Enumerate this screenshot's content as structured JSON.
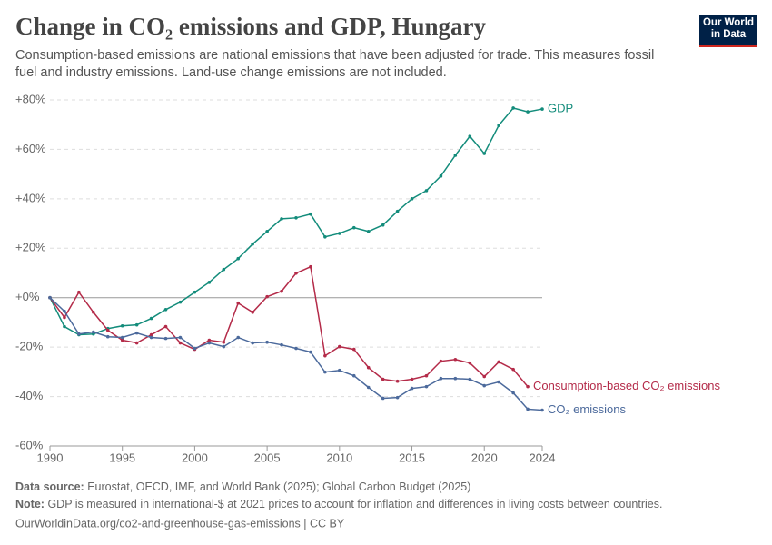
{
  "chart_data": {
    "type": "line",
    "title": "Change in CO₂ emissions and GDP, Hungary",
    "subtitle": "Consumption-based emissions are national emissions that have been adjusted for trade. This measures fossil fuel and industry emissions. Land-use change emissions are not included.",
    "logo": [
      "Our World",
      "in Data"
    ],
    "x": [
      1990,
      1991,
      1992,
      1993,
      1994,
      1995,
      1996,
      1997,
      1998,
      1999,
      2000,
      2001,
      2002,
      2003,
      2004,
      2005,
      2006,
      2007,
      2008,
      2009,
      2010,
      2011,
      2012,
      2013,
      2014,
      2015,
      2016,
      2017,
      2018,
      2019,
      2020,
      2021,
      2022,
      2023,
      2024
    ],
    "series": [
      {
        "name": "GDP",
        "color": "#138c7b",
        "values": [
          0,
          -11.7,
          -15,
          -14.7,
          -12.5,
          -11.4,
          -11,
          -8.4,
          -4.8,
          -1.8,
          2.2,
          6.2,
          11.4,
          15.8,
          21.7,
          26.8,
          31.9,
          32.3,
          33.8,
          24.6,
          26,
          28.3,
          26.8,
          29.4,
          34.9,
          40,
          43.3,
          49.2,
          57.6,
          65.3,
          58.3,
          69.7,
          76.7,
          75.2,
          76.3
        ]
      },
      {
        "name": "Consumption-based CO₂ emissions",
        "color": "#b42b49",
        "values": [
          0,
          -8,
          2.2,
          -5.9,
          -13.2,
          -17.2,
          -18.3,
          -15,
          -11.7,
          -18.3,
          -20.9,
          -17.2,
          -18,
          -2.2,
          -5.9,
          0.4,
          2.6,
          9.9,
          12.5,
          -23.5,
          -19.8,
          -20.9,
          -28.3,
          -33,
          -33.8,
          -33,
          -31.6,
          -25.7,
          -25,
          -26.4,
          -31.9,
          -26,
          -29,
          -36,
          null
        ]
      },
      {
        "name": "CO₂ emissions",
        "color": "#4c6a9c",
        "values": [
          0,
          -5.5,
          -14.7,
          -13.9,
          -15.8,
          -16.1,
          -14.3,
          -16.1,
          -16.5,
          -16.1,
          -20.5,
          -18.3,
          -19.8,
          -16.1,
          -18.3,
          -18,
          -19.1,
          -20.5,
          -22,
          -30.1,
          -29.4,
          -31.6,
          -36.3,
          -40.7,
          -40.4,
          -36.7,
          -36,
          -32.7,
          -32.7,
          -33,
          -35.6,
          -34.1,
          -38.5,
          -45.1,
          -45.5
        ]
      }
    ],
    "xlim": [
      1990,
      2024
    ],
    "xticks": [
      1990,
      1995,
      2000,
      2005,
      2010,
      2015,
      2020,
      2024
    ],
    "ylim": [
      -60,
      80
    ],
    "yticks": [
      {
        "value": -60,
        "label": "-60%"
      },
      {
        "value": -40,
        "label": "-40%"
      },
      {
        "value": -20,
        "label": "-20%"
      },
      {
        "value": 0,
        "label": "+0%"
      },
      {
        "value": 20,
        "label": "+20%"
      },
      {
        "value": 40,
        "label": "+40%"
      },
      {
        "value": 60,
        "label": "+60%"
      },
      {
        "value": 80,
        "label": "+80%"
      }
    ],
    "grid": true,
    "source_label": "Data source:",
    "source": "Eurostat, OECD, IMF, and World Bank (2025); Global Carbon Budget (2025)",
    "note_label": "Note:",
    "note": "GDP is measured in international-$ at 2021 prices to account for inflation and differences in living costs between countries.",
    "url": "OurWorldinData.org/co2-and-greenhouse-gas-emissions | CC BY"
  }
}
